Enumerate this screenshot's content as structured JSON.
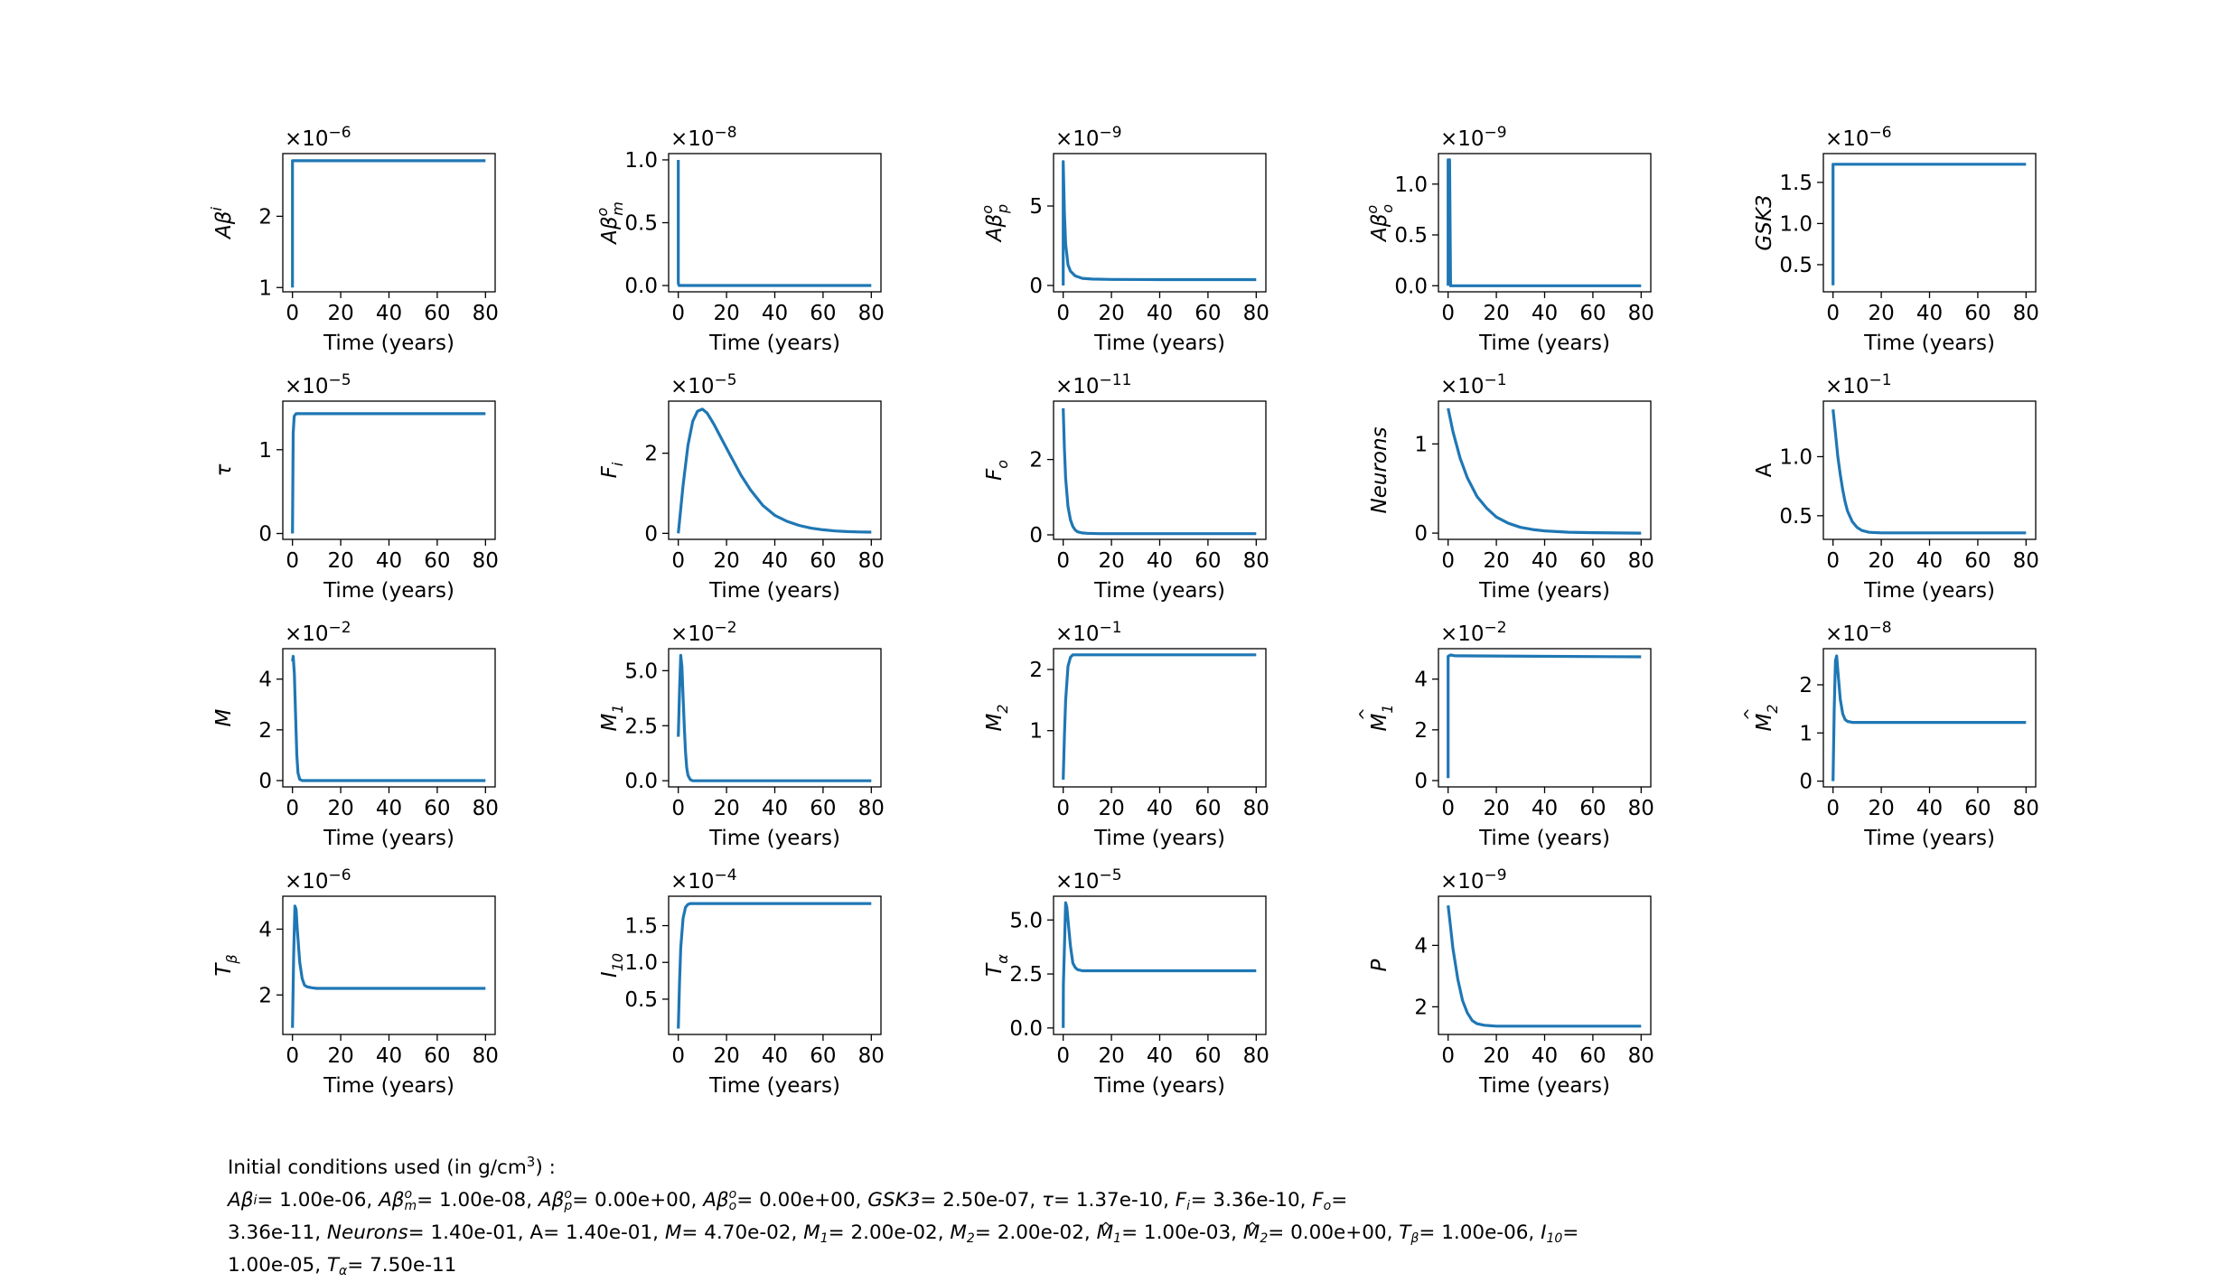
{
  "chart_data": [
    {
      "type": "line",
      "ylabel_sym": "Aβ",
      "ylabel_sup": "i",
      "ylabel_sub": "",
      "ylabel_italic": true,
      "ylabel_hat": false,
      "offset": "×10",
      "offset_exp": "−6",
      "xlabel": "Time (years)",
      "xticks": [
        0,
        20,
        40,
        60,
        80
      ],
      "xlim": [
        -4,
        84
      ],
      "yticks": [
        1,
        2
      ],
      "ylim": [
        0.94,
        2.88
      ],
      "color": "#1f77b4",
      "x": [
        0,
        0.01,
        80
      ],
      "y": [
        1.0,
        2.78,
        2.78
      ]
    },
    {
      "type": "line",
      "ylabel_sym": "Aβ",
      "ylabel_sup": "o",
      "ylabel_sub": "m",
      "ylabel_italic": true,
      "ylabel_hat": false,
      "offset": "×10",
      "offset_exp": "−8",
      "xlabel": "Time (years)",
      "xticks": [
        0,
        20,
        40,
        60,
        80
      ],
      "xlim": [
        -4,
        84
      ],
      "yticks": [
        0.0,
        0.5,
        1.0
      ],
      "ylim": [
        -0.05,
        1.05
      ],
      "color": "#1f77b4",
      "x": [
        0,
        0.01,
        0.3,
        80
      ],
      "y": [
        1.0,
        0.02,
        0.0,
        0.0
      ]
    },
    {
      "type": "line",
      "ylabel_sym": "Aβ",
      "ylabel_sup": "o",
      "ylabel_sub": "p",
      "ylabel_italic": true,
      "ylabel_hat": false,
      "offset": "×10",
      "offset_exp": "−9",
      "xlabel": "Time (years)",
      "xticks": [
        0,
        20,
        40,
        60,
        80
      ],
      "xlim": [
        -4,
        84
      ],
      "yticks": [
        0,
        5
      ],
      "ylim": [
        -0.4,
        8.3
      ],
      "color": "#1f77b4",
      "x": [
        0,
        0.01,
        0.5,
        1,
        2,
        3,
        5,
        8,
        12,
        20,
        40,
        80
      ],
      "y": [
        0,
        7.8,
        4.6,
        2.6,
        1.3,
        0.9,
        0.6,
        0.45,
        0.4,
        0.38,
        0.37,
        0.37
      ]
    },
    {
      "type": "line",
      "ylabel_sym": "Aβ",
      "ylabel_sup": "o",
      "ylabel_sub": "o",
      "ylabel_italic": true,
      "ylabel_hat": false,
      "offset": "×10",
      "offset_exp": "−9",
      "xlabel": "Time (years)",
      "xticks": [
        0,
        20,
        40,
        60,
        80
      ],
      "xlim": [
        -4,
        84
      ],
      "yticks": [
        0.0,
        0.5,
        1.0
      ],
      "ylim": [
        -0.06,
        1.3
      ],
      "color": "#1f77b4",
      "x": [
        0,
        0.01,
        0.6,
        1,
        80
      ],
      "y": [
        0,
        1.24,
        1.24,
        0.0,
        0.0
      ]
    },
    {
      "type": "line",
      "ylabel_sym": "GSK3",
      "ylabel_sup": "",
      "ylabel_sub": "",
      "ylabel_italic": true,
      "ylabel_hat": false,
      "offset": "×10",
      "offset_exp": "−6",
      "xlabel": "Time (years)",
      "xticks": [
        0,
        20,
        40,
        60,
        80
      ],
      "xlim": [
        -4,
        84
      ],
      "yticks": [
        0.5,
        1.0,
        1.5
      ],
      "ylim": [
        0.17,
        1.85
      ],
      "color": "#1f77b4",
      "x": [
        0,
        0.01,
        80
      ],
      "y": [
        0.25,
        1.72,
        1.72
      ]
    },
    {
      "type": "line",
      "ylabel_sym": "τ",
      "ylabel_sup": "",
      "ylabel_sub": "",
      "ylabel_italic": true,
      "ylabel_hat": false,
      "offset": "×10",
      "offset_exp": "−5",
      "xlabel": "Time (years)",
      "xticks": [
        0,
        20,
        40,
        60,
        80
      ],
      "xlim": [
        -4,
        84
      ],
      "yticks": [
        0,
        1
      ],
      "ylim": [
        -0.07,
        1.58
      ],
      "color": "#1f77b4",
      "x": [
        0,
        0.3,
        0.7,
        1.5,
        80
      ],
      "y": [
        0.0,
        1.2,
        1.4,
        1.43,
        1.43
      ]
    },
    {
      "type": "line",
      "ylabel_sym": "F",
      "ylabel_sup": "",
      "ylabel_sub": "i",
      "ylabel_italic": true,
      "ylabel_hat": false,
      "offset": "×10",
      "offset_exp": "−5",
      "xlabel": "Time (years)",
      "xticks": [
        0,
        20,
        40,
        60,
        80
      ],
      "xlim": [
        -4,
        84
      ],
      "yticks": [
        0,
        2
      ],
      "ylim": [
        -0.15,
        3.3
      ],
      "color": "#1f77b4",
      "x": [
        0,
        2,
        4,
        6,
        8,
        10,
        12,
        15,
        18,
        22,
        26,
        30,
        35,
        40,
        45,
        50,
        55,
        60,
        65,
        70,
        75,
        80
      ],
      "y": [
        0.0,
        1.2,
        2.2,
        2.8,
        3.05,
        3.1,
        3.0,
        2.7,
        2.35,
        1.9,
        1.45,
        1.08,
        0.7,
        0.45,
        0.3,
        0.2,
        0.13,
        0.09,
        0.06,
        0.045,
        0.035,
        0.03
      ]
    },
    {
      "type": "line",
      "ylabel_sym": "F",
      "ylabel_sup": "",
      "ylabel_sub": "o",
      "ylabel_italic": true,
      "ylabel_hat": false,
      "offset": "×10",
      "offset_exp": "−11",
      "xlabel": "Time (years)",
      "xticks": [
        0,
        20,
        40,
        60,
        80
      ],
      "xlim": [
        -4,
        84
      ],
      "yticks": [
        0,
        2
      ],
      "ylim": [
        -0.12,
        3.55
      ],
      "color": "#1f77b4",
      "x": [
        0,
        0.5,
        1,
        2,
        3,
        4,
        5,
        6,
        8,
        10,
        15,
        80
      ],
      "y": [
        3.36,
        2.3,
        1.5,
        0.75,
        0.4,
        0.22,
        0.13,
        0.08,
        0.05,
        0.04,
        0.03,
        0.03
      ]
    },
    {
      "type": "line",
      "ylabel_sym": "Neurons",
      "ylabel_sup": "",
      "ylabel_sub": "",
      "ylabel_italic": true,
      "ylabel_hat": false,
      "offset": "×10",
      "offset_exp": "−1",
      "xlabel": "Time (years)",
      "xticks": [
        0,
        20,
        40,
        60,
        80
      ],
      "xlim": [
        -4,
        84
      ],
      "yticks": [
        0,
        1
      ],
      "ylim": [
        -0.07,
        1.48
      ],
      "color": "#1f77b4",
      "x": [
        0,
        2,
        5,
        8,
        12,
        16,
        20,
        25,
        30,
        35,
        40,
        50,
        60,
        70,
        80
      ],
      "y": [
        1.4,
        1.14,
        0.84,
        0.62,
        0.41,
        0.28,
        0.18,
        0.11,
        0.065,
        0.04,
        0.025,
        0.01,
        0.005,
        0.002,
        0.0
      ]
    },
    {
      "type": "line",
      "ylabel_sym": "A",
      "ylabel_sup": "",
      "ylabel_sub": "",
      "ylabel_italic": false,
      "ylabel_hat": false,
      "offset": "×10",
      "offset_exp": "−1",
      "xlabel": "Time (years)",
      "xticks": [
        0,
        20,
        40,
        60,
        80
      ],
      "xlim": [
        -4,
        84
      ],
      "yticks": [
        0.5,
        1.0
      ],
      "ylim": [
        0.3,
        1.47
      ],
      "color": "#1f77b4",
      "x": [
        0,
        1,
        2,
        3,
        4,
        5,
        6,
        8,
        10,
        12,
        15,
        20,
        80
      ],
      "y": [
        1.4,
        1.2,
        1.0,
        0.85,
        0.72,
        0.62,
        0.54,
        0.45,
        0.4,
        0.375,
        0.36,
        0.355,
        0.355
      ]
    },
    {
      "type": "line",
      "ylabel_sym": "M",
      "ylabel_sup": "",
      "ylabel_sub": "",
      "ylabel_italic": true,
      "ylabel_hat": false,
      "offset": "×10",
      "offset_exp": "−2",
      "xlabel": "Time (years)",
      "xticks": [
        0,
        20,
        40,
        60,
        80
      ],
      "xlim": [
        -4,
        84
      ],
      "yticks": [
        0,
        2,
        4
      ],
      "ylim": [
        -0.25,
        5.2
      ],
      "color": "#1f77b4",
      "x": [
        0,
        0.3,
        0.8,
        1.3,
        1.8,
        2.3,
        3,
        4,
        80
      ],
      "y": [
        4.7,
        4.9,
        4.2,
        2.5,
        1.0,
        0.3,
        0.05,
        0.0,
        0.0
      ]
    },
    {
      "type": "line",
      "ylabel_sym": "M",
      "ylabel_sup": "",
      "ylabel_sub": "1",
      "ylabel_italic": true,
      "ylabel_hat": false,
      "offset": "×10",
      "offset_exp": "−2",
      "xlabel": "Time (years)",
      "xticks": [
        0,
        20,
        40,
        60,
        80
      ],
      "xlim": [
        -4,
        84
      ],
      "yticks": [
        0.0,
        2.5,
        5.0
      ],
      "ylim": [
        -0.28,
        6.0
      ],
      "color": "#1f77b4",
      "x": [
        0,
        0.5,
        1,
        1.5,
        2,
        2.5,
        3,
        3.5,
        4,
        5,
        6,
        80
      ],
      "y": [
        2.0,
        4.0,
        5.7,
        5.2,
        3.8,
        2.4,
        1.3,
        0.6,
        0.25,
        0.05,
        0.0,
        0.0
      ]
    },
    {
      "type": "line",
      "ylabel_sym": "M",
      "ylabel_sup": "",
      "ylabel_sub": "2",
      "ylabel_italic": true,
      "ylabel_hat": false,
      "offset": "×10",
      "offset_exp": "−1",
      "xlabel": "Time (years)",
      "xticks": [
        0,
        20,
        40,
        60,
        80
      ],
      "xlim": [
        -4,
        84
      ],
      "yticks": [
        1,
        2
      ],
      "ylim": [
        0.08,
        2.34
      ],
      "color": "#1f77b4",
      "x": [
        0,
        0.5,
        1,
        2,
        3,
        4,
        5,
        80
      ],
      "y": [
        0.2,
        0.9,
        1.5,
        2.05,
        2.2,
        2.24,
        2.24,
        2.24
      ]
    },
    {
      "type": "line",
      "ylabel_sym": "M",
      "ylabel_sup": "",
      "ylabel_sub": "1",
      "ylabel_italic": true,
      "ylabel_hat": true,
      "offset": "×10",
      "offset_exp": "−2",
      "xlabel": "Time (years)",
      "xticks": [
        0,
        20,
        40,
        60,
        80
      ],
      "xlim": [
        -4,
        84
      ],
      "yticks": [
        0,
        2,
        4
      ],
      "ylim": [
        -0.25,
        5.2
      ],
      "color": "#1f77b4",
      "x": [
        0,
        0.01,
        1,
        3,
        80
      ],
      "y": [
        0.1,
        4.9,
        4.95,
        4.92,
        4.88
      ]
    },
    {
      "type": "line",
      "ylabel_sym": "M",
      "ylabel_sup": "",
      "ylabel_sub": "2",
      "ylabel_italic": true,
      "ylabel_hat": true,
      "offset": "×10",
      "offset_exp": "−8",
      "xlabel": "Time (years)",
      "xticks": [
        0,
        20,
        40,
        60,
        80
      ],
      "xlim": [
        -4,
        84
      ],
      "yticks": [
        0,
        1,
        2
      ],
      "ylim": [
        -0.12,
        2.75
      ],
      "color": "#1f77b4",
      "x": [
        0,
        0.5,
        1,
        1.5,
        2,
        3,
        4,
        5,
        6,
        8,
        10,
        80
      ],
      "y": [
        0.0,
        1.5,
        2.5,
        2.6,
        2.3,
        1.7,
        1.4,
        1.28,
        1.24,
        1.22,
        1.22,
        1.22
      ]
    },
    {
      "type": "line",
      "ylabel_sym": "T",
      "ylabel_sup": "",
      "ylabel_sub": "β",
      "ylabel_italic": true,
      "ylabel_hat": false,
      "offset": "×10",
      "offset_exp": "−6",
      "xlabel": "Time (years)",
      "xticks": [
        0,
        20,
        40,
        60,
        80
      ],
      "xlim": [
        -4,
        84
      ],
      "yticks": [
        2,
        4
      ],
      "ylim": [
        0.8,
        5.0
      ],
      "color": "#1f77b4",
      "x": [
        0,
        0.5,
        1,
        1.5,
        2,
        3,
        4,
        5,
        6,
        8,
        10,
        80
      ],
      "y": [
        1.0,
        3.2,
        4.7,
        4.6,
        4.0,
        3.0,
        2.5,
        2.3,
        2.25,
        2.22,
        2.2,
        2.2
      ]
    },
    {
      "type": "line",
      "ylabel_sym": "I",
      "ylabel_sup": "",
      "ylabel_sub": "10",
      "ylabel_italic": true,
      "ylabel_hat": false,
      "offset": "×10",
      "offset_exp": "−4",
      "xlabel": "Time (years)",
      "xticks": [
        0,
        20,
        40,
        60,
        80
      ],
      "xlim": [
        -4,
        84
      ],
      "yticks": [
        0.5,
        1.0,
        1.5
      ],
      "ylim": [
        0.02,
        1.9
      ],
      "color": "#1f77b4",
      "x": [
        0,
        0.5,
        1,
        2,
        3,
        4,
        5,
        80
      ],
      "y": [
        0.1,
        0.7,
        1.2,
        1.6,
        1.75,
        1.79,
        1.8,
        1.8
      ]
    },
    {
      "type": "line",
      "ylabel_sym": "T",
      "ylabel_sup": "",
      "ylabel_sub": "α",
      "ylabel_italic": true,
      "ylabel_hat": false,
      "offset": "×10",
      "offset_exp": "−5",
      "xlabel": "Time (years)",
      "xticks": [
        0,
        20,
        40,
        60,
        80
      ],
      "xlim": [
        -4,
        84
      ],
      "yticks": [
        0.0,
        2.5,
        5.0
      ],
      "ylim": [
        -0.3,
        6.1
      ],
      "color": "#1f77b4",
      "x": [
        0,
        0.1,
        1,
        1.5,
        2,
        3,
        4,
        5,
        6,
        8,
        80
      ],
      "y": [
        0.0,
        2.0,
        5.8,
        5.6,
        5.0,
        3.8,
        3.0,
        2.8,
        2.7,
        2.65,
        2.65
      ]
    },
    {
      "type": "line",
      "ylabel_sym": "P",
      "ylabel_sup": "",
      "ylabel_sub": "",
      "ylabel_italic": true,
      "ylabel_hat": false,
      "offset": "×10",
      "offset_exp": "−9",
      "xlabel": "Time (years)",
      "xticks": [
        0,
        20,
        40,
        60,
        80
      ],
      "xlim": [
        -4,
        84
      ],
      "yticks": [
        2,
        4
      ],
      "ylim": [
        1.1,
        5.6
      ],
      "color": "#1f77b4",
      "x": [
        0,
        1,
        2,
        4,
        6,
        8,
        10,
        12,
        15,
        20,
        25,
        30,
        40,
        80
      ],
      "y": [
        5.3,
        4.6,
        3.9,
        2.9,
        2.2,
        1.8,
        1.55,
        1.45,
        1.4,
        1.37,
        1.37,
        1.37,
        1.37,
        1.37
      ]
    }
  ],
  "caption": {
    "line1_pre": "Initial conditions used (in g/cm",
    "line1_sup": "3",
    "line1_post": ") :",
    "line2": [
      {
        "sym": "Aβ",
        "sup": "i",
        "sub": "",
        "val": "= 1.00e-06, "
      },
      {
        "sym": "Aβ",
        "sup": "o",
        "sub": "m",
        "val": "= 1.00e-08, "
      },
      {
        "sym": "Aβ",
        "sup": "o",
        "sub": "p",
        "val": "= 0.00e+00, "
      },
      {
        "sym": "Aβ",
        "sup": "o",
        "sub": "o",
        "val": "= 0.00e+00, "
      },
      {
        "sym": "GSK3",
        "sup": "",
        "sub": "",
        "val": "= 2.50e-07, "
      },
      {
        "sym": "τ",
        "sup": "",
        "sub": "",
        "val": "= 1.37e-10, "
      },
      {
        "sym": "F",
        "sup": "",
        "sub": "i",
        "val": "= 3.36e-10, "
      },
      {
        "sym": "F",
        "sup": "",
        "sub": "o",
        "val": "="
      }
    ],
    "line3": [
      {
        "sym": "",
        "sup": "",
        "sub": "",
        "val": "3.36e-11, "
      },
      {
        "sym": "Neurons",
        "sup": "",
        "sub": "",
        "val": "= 1.40e-01, "
      },
      {
        "sym": "",
        "sup": "",
        "sub": "",
        "val": "A= 1.40e-01, "
      },
      {
        "sym": "M",
        "sup": "",
        "sub": "",
        "val": "= 4.70e-02, "
      },
      {
        "sym": "M",
        "sup": "",
        "sub": "1",
        "val": "= 2.00e-02, "
      },
      {
        "sym": "M",
        "sup": "",
        "sub": "2",
        "val": "= 2.00e-02, "
      },
      {
        "sym": "M",
        "sup": "",
        "sub": "1",
        "hat": true,
        "val": "= 1.00e-03, "
      },
      {
        "sym": "M",
        "sup": "",
        "sub": "2",
        "hat": true,
        "val": "= 0.00e+00, "
      },
      {
        "sym": "T",
        "sup": "",
        "sub": "β",
        "val": "= 1.00e-06, "
      },
      {
        "sym": "I",
        "sup": "",
        "sub": "10",
        "val": "="
      }
    ],
    "line4": [
      {
        "sym": "",
        "sup": "",
        "sub": "",
        "val": "1.00e-05, "
      },
      {
        "sym": "T",
        "sup": "",
        "sub": "α",
        "val": "= 7.50e-11"
      }
    ]
  }
}
